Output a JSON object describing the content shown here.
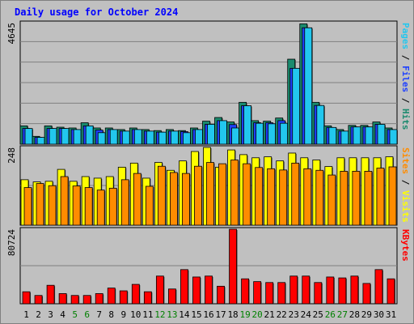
{
  "chart_data": {
    "type": "bar",
    "title": "Daily usage for October 2024",
    "categories": [
      "1",
      "2",
      "3",
      "4",
      "5",
      "6",
      "7",
      "8",
      "9",
      "10",
      "11",
      "12",
      "13",
      "14",
      "15",
      "16",
      "17",
      "18",
      "19",
      "20",
      "21",
      "22",
      "23",
      "24",
      "25",
      "26",
      "27",
      "28",
      "29",
      "30",
      "31"
    ],
    "weekend_days": [
      "5",
      "6",
      "12",
      "13",
      "19",
      "20",
      "26",
      "27"
    ],
    "panels": [
      {
        "name": "upper",
        "max_label": "4645",
        "ymax": 4645,
        "right_label": [
          "Pages",
          " / ",
          "Files",
          " / ",
          "Hits"
        ],
        "series": [
          {
            "name": "Hits",
            "color": "#1a8a6e",
            "values": [
              700,
              300,
              700,
              650,
              620,
              820,
              620,
              620,
              560,
              620,
              560,
              520,
              560,
              520,
              620,
              880,
              1020,
              850,
              1600,
              900,
              880,
              1000,
              3250,
              4600,
              1600,
              700,
              560,
              720,
              720,
              850,
              620
            ]
          },
          {
            "name": "Files",
            "color": "#1e40ff",
            "values": [
              600,
              260,
              600,
              600,
              560,
              700,
              540,
              560,
              500,
              560,
              500,
              460,
              500,
              480,
              560,
              760,
              900,
              750,
              1470,
              820,
              820,
              900,
              2900,
              4450,
              1480,
              640,
              500,
              660,
              660,
              760,
              560
            ]
          },
          {
            "name": "Pages",
            "color": "#22c7ee",
            "values": [
              600,
              260,
              600,
              600,
              560,
              700,
              440,
              560,
              500,
              560,
              500,
              460,
              500,
              440,
              560,
              760,
              900,
              620,
              1470,
              800,
              780,
              800,
              2900,
              4450,
              1480,
              640,
              500,
              660,
              660,
              760,
              560
            ]
          }
        ]
      },
      {
        "name": "middle",
        "max_label": "248",
        "ymax": 248,
        "right_label": [
          "Sites",
          " / ",
          "Visits"
        ],
        "series": [
          {
            "name": "Visits",
            "color": "#ffff00",
            "values": [
              145,
              138,
              140,
              178,
              140,
              155,
              150,
              155,
              185,
              198,
              150,
              200,
              175,
              205,
              235,
              248,
              185,
              240,
              225,
              215,
              218,
              205,
              230,
              215,
              208,
              187,
              215,
              215,
              215,
              215,
              218
            ]
          },
          {
            "name": "Sites",
            "color": "#ff8c00",
            "values": [
              120,
              133,
              126,
              155,
              125,
              120,
              112,
              118,
              145,
              165,
              124,
              188,
              168,
              165,
              188,
              200,
              196,
              208,
              196,
              184,
              180,
              176,
              198,
              180,
              175,
              160,
              172,
              172,
              172,
              182,
              186
            ]
          }
        ]
      },
      {
        "name": "lower",
        "max_label": "80724",
        "ymax": 80724,
        "right_label": [
          "KBytes"
        ],
        "series": [
          {
            "name": "KBytes",
            "color": "#ff0000",
            "values": [
              13000,
              9000,
              20000,
              11000,
              9000,
              9000,
              11000,
              17000,
              14000,
              21000,
              13000,
              30000,
              16000,
              37000,
              29000,
              30000,
              19000,
              80724,
              27000,
              24000,
              23000,
              23000,
              30000,
              30000,
              23000,
              29000,
              28000,
              30000,
              22000,
              37000,
              27000
            ]
          }
        ]
      }
    ]
  }
}
